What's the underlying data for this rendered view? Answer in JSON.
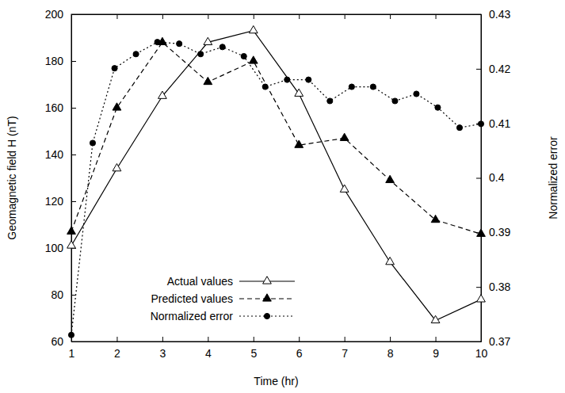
{
  "chart_data": {
    "type": "line",
    "x_label": "Time (hr)",
    "y_label": "Geomagnetic field H (nT)",
    "y2_label": "Normalized error",
    "x": [
      1,
      2,
      3,
      4,
      5,
      6,
      7,
      8,
      9,
      10
    ],
    "xlim": [
      1,
      10
    ],
    "xticks": [
      1,
      2,
      3,
      4,
      5,
      6,
      7,
      8,
      9,
      10
    ],
    "ylim": [
      60,
      200
    ],
    "yticks": [
      60,
      80,
      100,
      120,
      140,
      160,
      180,
      200
    ],
    "y2lim": [
      0.37,
      0.43
    ],
    "y2ticks": [
      0.37,
      0.38,
      0.39,
      0.4,
      0.41,
      0.42,
      0.43
    ],
    "legend": "lower center",
    "series": [
      {
        "name": "Actual values",
        "color": "#000000",
        "marker": "triangle-open",
        "line_style": "solid",
        "values": [
          101,
          134,
          165,
          188,
          193,
          166,
          125,
          94,
          69,
          78
        ]
      },
      {
        "name": "Predicted values",
        "color": "#000000",
        "marker": "triangle",
        "line_style": "dashed",
        "values": [
          107,
          160,
          188,
          171,
          180,
          144,
          147,
          129,
          112,
          106
        ]
      },
      {
        "name": "Normalized error",
        "color": "#000000",
        "marker": "circle",
        "line_style": "dotted",
        "axis": "y2",
        "x": [
          1,
          1.47,
          1.95,
          2.42,
          2.89,
          3.37,
          3.84,
          4.32,
          4.79,
          5.26,
          5.74,
          6.21,
          6.68,
          7.16,
          7.63,
          8.11,
          8.58,
          9.05,
          9.53,
          10
        ],
        "values": [
          0.3712,
          0.4064,
          0.4201,
          0.4227,
          0.4249,
          0.4246,
          0.4227,
          0.424,
          0.4223,
          0.4167,
          0.418,
          0.418,
          0.4141,
          0.4167,
          0.4167,
          0.4141,
          0.4154,
          0.4129,
          0.4092,
          0.4099
        ]
      }
    ]
  }
}
